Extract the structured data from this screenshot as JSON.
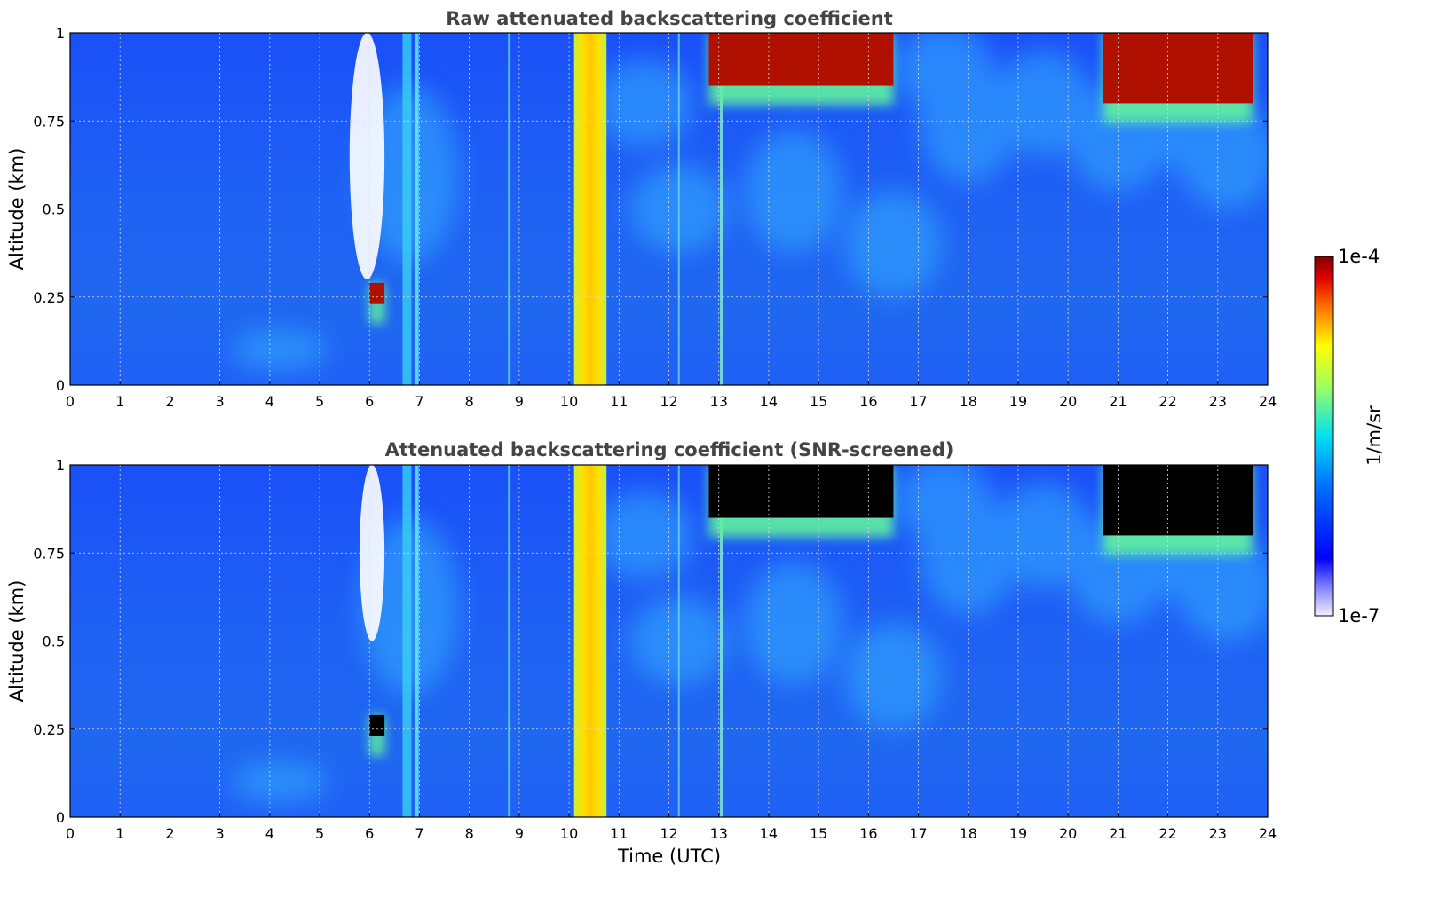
{
  "chart_data": [
    {
      "type": "heatmap",
      "title": "Raw attenuated backscattering coefficient",
      "xlabel": "",
      "ylabel": "Altitude (km)",
      "xlim": [
        0,
        24
      ],
      "ylim": [
        0,
        1
      ],
      "xticks": [
        "0",
        "1",
        "2",
        "3",
        "4",
        "5",
        "6",
        "7",
        "8",
        "9",
        "10",
        "11",
        "12",
        "13",
        "14",
        "15",
        "16",
        "17",
        "18",
        "19",
        "20",
        "21",
        "22",
        "23",
        "24"
      ],
      "yticks": [
        "0",
        "0.25",
        "0.5",
        "0.75",
        "1"
      ],
      "grid": true,
      "features": [
        {
          "kind": "aerosol_layer",
          "x": [
            10.1,
            10.75
          ],
          "y": [
            0,
            1
          ],
          "level": 0.75
        },
        {
          "kind": "cloud",
          "x": [
            12.8,
            16.5
          ],
          "y": [
            0.85,
            1.0
          ],
          "level": 1.0
        },
        {
          "kind": "cloud",
          "x": [
            20.7,
            23.7
          ],
          "y": [
            0.8,
            1.0
          ],
          "level": 1.0
        },
        {
          "kind": "cloud",
          "x": [
            6.0,
            6.3
          ],
          "y": [
            0.23,
            0.29
          ],
          "level": 1.0
        },
        {
          "kind": "no_signal",
          "x": [
            5.6,
            6.3
          ],
          "y": [
            0.3,
            1.0
          ]
        }
      ]
    },
    {
      "type": "heatmap",
      "title": "Attenuated backscattering coefficient (SNR-screened)",
      "xlabel": "Time (UTC)",
      "ylabel": "Altitude (km)",
      "xlim": [
        0,
        24
      ],
      "ylim": [
        0,
        1
      ],
      "xticks": [
        "0",
        "1",
        "2",
        "3",
        "4",
        "5",
        "6",
        "7",
        "8",
        "9",
        "10",
        "11",
        "12",
        "13",
        "14",
        "15",
        "16",
        "17",
        "18",
        "19",
        "20",
        "21",
        "22",
        "23",
        "24"
      ],
      "yticks": [
        "0",
        "0.25",
        "0.5",
        "0.75",
        "1"
      ],
      "grid": true,
      "features": [
        {
          "kind": "aerosol_layer",
          "x": [
            10.1,
            10.75
          ],
          "y": [
            0,
            1
          ],
          "level": 0.75
        },
        {
          "kind": "screened_cloud",
          "x": [
            12.8,
            16.5
          ],
          "y": [
            0.85,
            1.0
          ]
        },
        {
          "kind": "screened_cloud",
          "x": [
            20.7,
            23.7
          ],
          "y": [
            0.8,
            1.0
          ]
        },
        {
          "kind": "screened_cloud",
          "x": [
            6.0,
            6.3
          ],
          "y": [
            0.23,
            0.29
          ]
        },
        {
          "kind": "no_signal",
          "x": [
            5.8,
            6.3
          ],
          "y": [
            0.5,
            1.0
          ]
        }
      ]
    }
  ],
  "colorbar": {
    "max_label": "1e-4",
    "min_label": "1e-7",
    "unit": "1/m/sr",
    "colormap": "jet"
  },
  "colors": {
    "title": "#444444",
    "background_blue": "#1d5cf5",
    "screened": "#000000"
  }
}
